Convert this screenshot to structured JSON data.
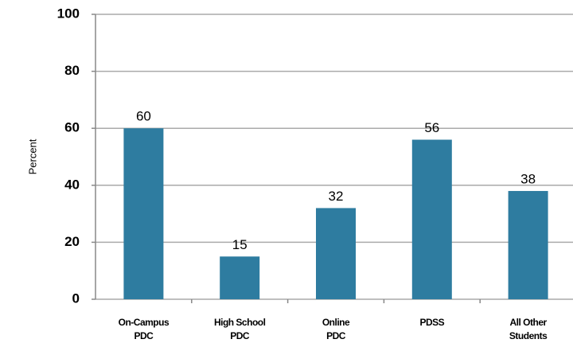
{
  "chart_data": {
    "type": "bar",
    "y_label": "Percent",
    "categories": [
      [
        "On-Campus",
        "PDC"
      ],
      [
        "High School",
        "PDC"
      ],
      [
        "Online",
        "PDC"
      ],
      [
        "PDSS"
      ],
      [
        "All Other",
        "Students"
      ]
    ],
    "values": [
      60,
      15,
      32,
      56,
      38
    ],
    "color": "#2e7ca0",
    "ylim": [
      0,
      100
    ],
    "yticks": [
      0,
      20,
      40,
      60,
      80,
      100
    ],
    "grid": true
  }
}
